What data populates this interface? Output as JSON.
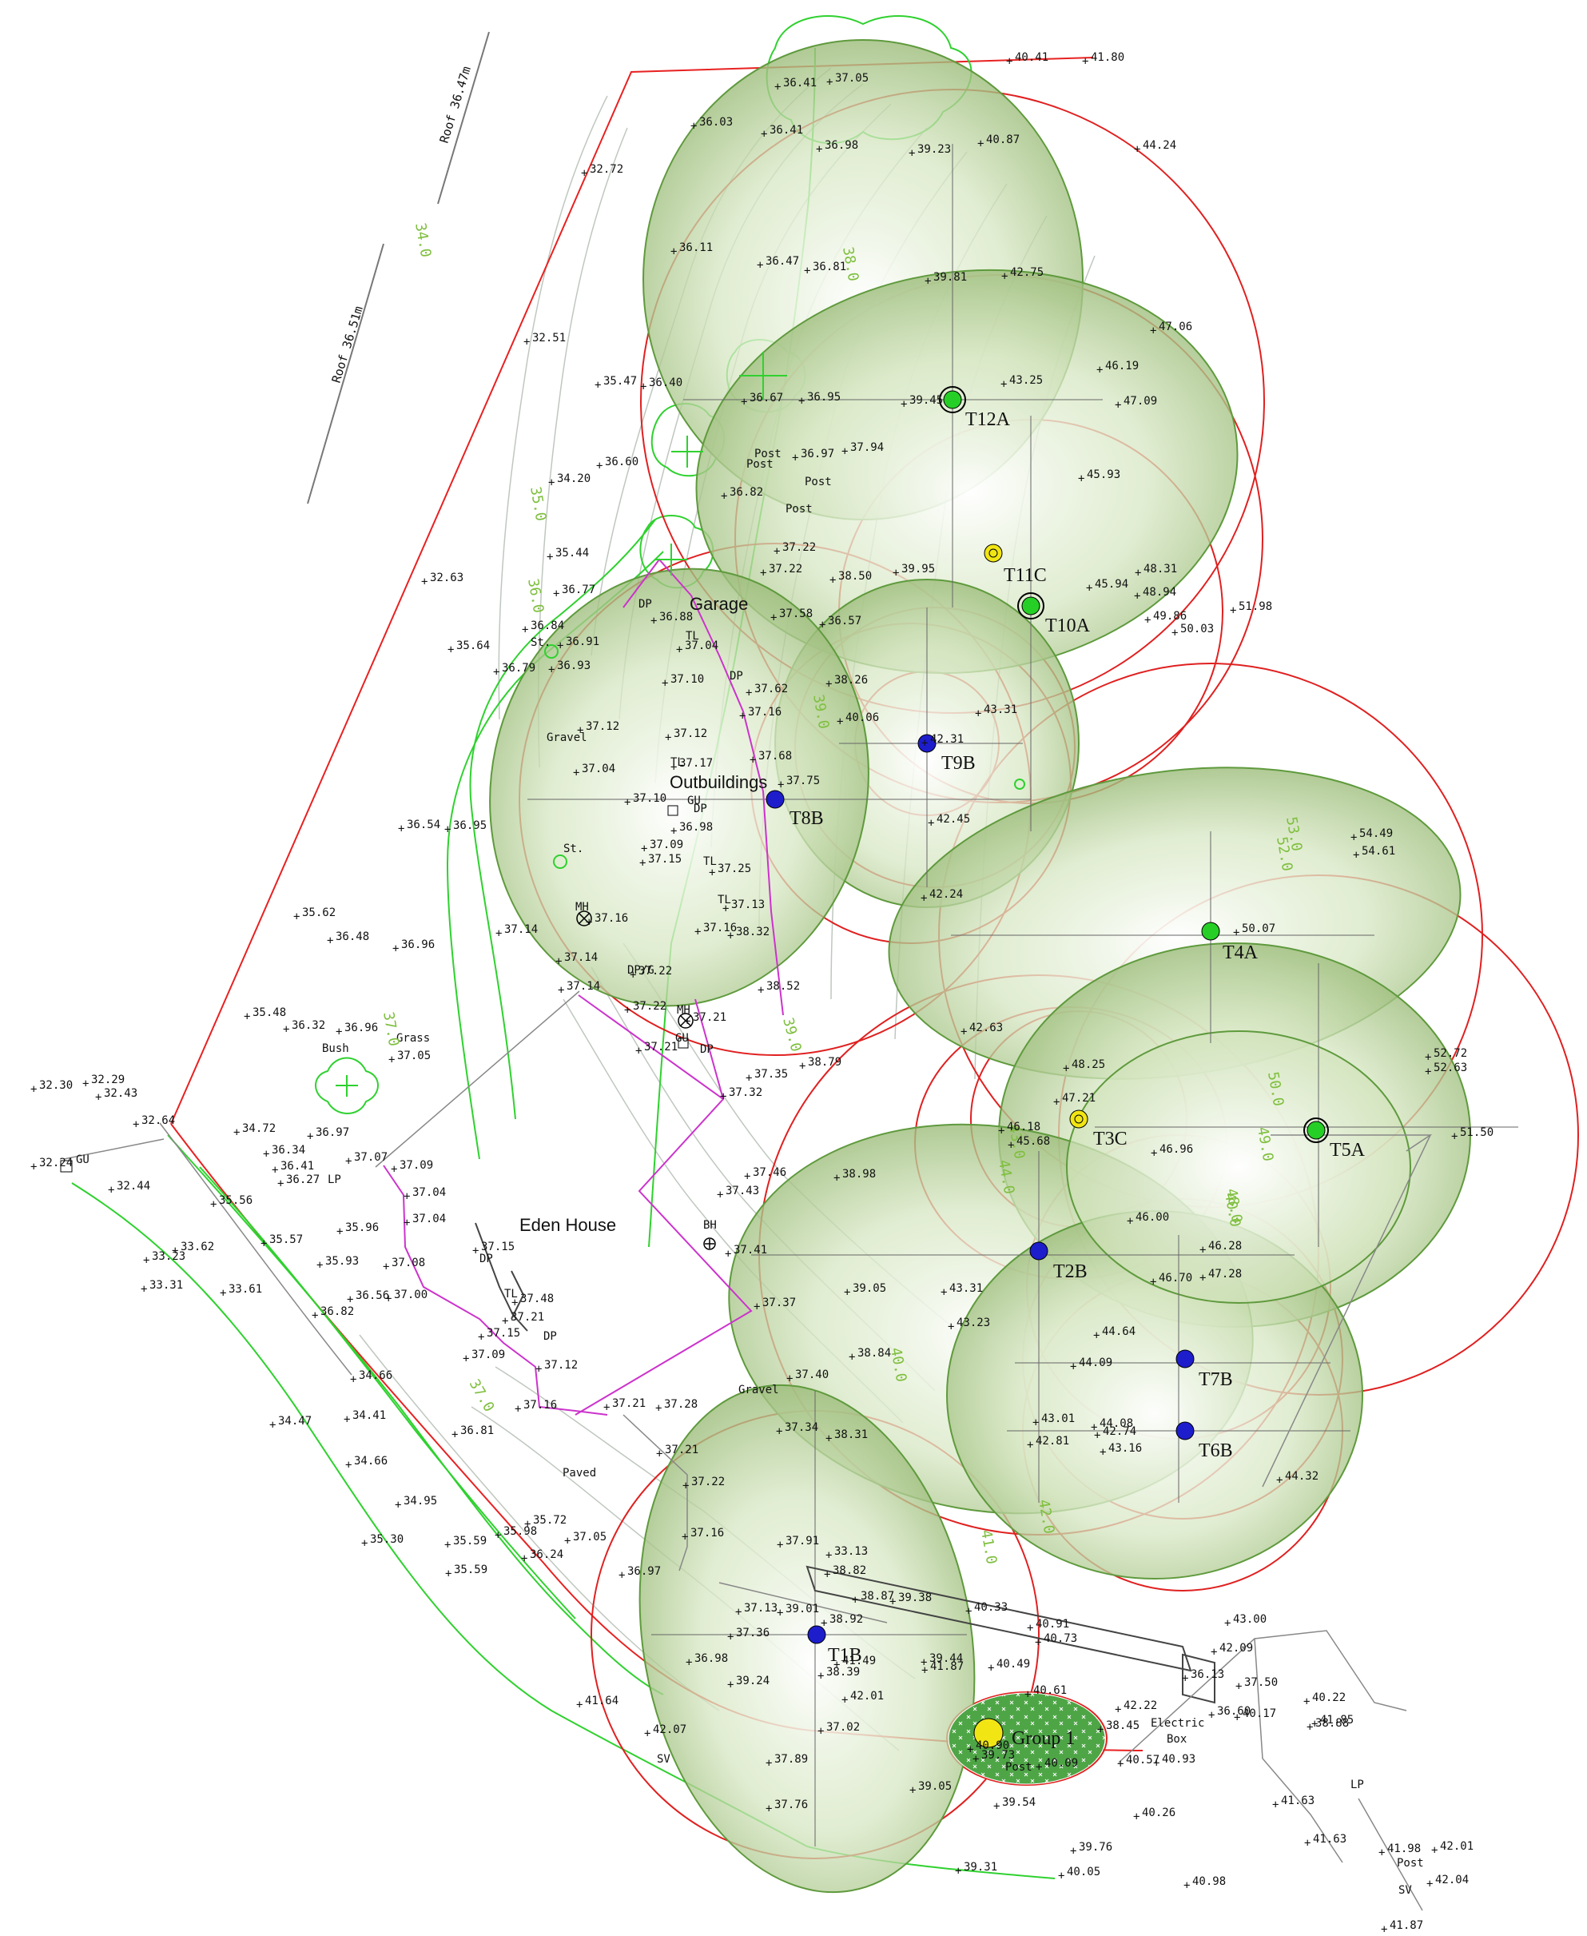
{
  "colors": {
    "boundary": "#e82121",
    "tree_canopy": "#a7ca76",
    "rpa_circle": "#e02020",
    "hedge": "#2fd12f",
    "utility": "#cc33cc",
    "contour": "#bfc7bf",
    "grid": "#666666",
    "marker_green": "#26cf26",
    "marker_blue": "#1d1dcc",
    "marker_yellow": "#f1e514"
  },
  "labels": {
    "buildings": {
      "eden_house": "Eden House",
      "garage": "Garage",
      "outbuildings": "Outbuildings"
    },
    "surfaces": {
      "gravel_top": "Gravel",
      "grass": "Grass",
      "gravel_bottom": "Gravel",
      "paved": "Paved",
      "bush": "Bush"
    },
    "roof": {
      "top": "Roof 36.47m",
      "middle": "Roof 36.51m"
    },
    "features": {
      "electric_box_1": "Electric",
      "electric_box_2": "Box"
    }
  },
  "trees": [
    {
      "id": "T12A",
      "label": "T12A",
      "marker": "green-ring-icon"
    },
    {
      "id": "T11C",
      "label": "T11C",
      "marker": "yellow-ring-icon"
    },
    {
      "id": "T10A",
      "label": "T10A",
      "marker": "green-ring-icon"
    },
    {
      "id": "T9B",
      "label": "T9B",
      "marker": "blue-dot-icon"
    },
    {
      "id": "T8B",
      "label": "T8B",
      "marker": "blue-dot-icon"
    },
    {
      "id": "T4A",
      "label": "T4A",
      "marker": "green-dot-icon"
    },
    {
      "id": "T3C",
      "label": "T3C",
      "marker": "yellow-ring-icon"
    },
    {
      "id": "T5A",
      "label": "T5A",
      "marker": "green-ring-icon"
    },
    {
      "id": "T2B",
      "label": "T2B",
      "marker": "blue-dot-icon"
    },
    {
      "id": "T7B",
      "label": "T7B",
      "marker": "blue-dot-icon"
    },
    {
      "id": "T6B",
      "label": "T6B",
      "marker": "blue-dot-icon"
    },
    {
      "id": "T1B",
      "label": "T1B",
      "marker": "blue-dot-icon"
    },
    {
      "id": "G1",
      "label": "Group 1",
      "marker": "yellow-dot-icon"
    }
  ],
  "spot_levels": [
    "36.41",
    "37.05",
    "40.41",
    "41.80",
    "36.03",
    "36.41",
    "36.98",
    "39.23",
    "40.87",
    "44.24",
    "32.72",
    "36.11",
    "36.47",
    "36.81",
    "39.81",
    "42.75",
    "47.06",
    "32.51",
    "35.47",
    "36.40",
    "36.67",
    "36.95",
    "39.45",
    "43.25",
    "46.19",
    "47.09",
    "36.60",
    "36.97",
    "37.94",
    "45.93",
    "34.20",
    "36.82",
    "37.22",
    "39.95",
    "45.94",
    "48.31",
    "48.94",
    "49.86",
    "50.03",
    "51.98",
    "32.63",
    "35.44",
    "36.77",
    "37.22",
    "38.50",
    "36.88",
    "37.58",
    "36.57",
    "36.84",
    "36.91",
    "37.04",
    "35.64",
    "36.79",
    "36.93",
    "37.10",
    "37.62",
    "38.26",
    "43.31",
    "37.12",
    "37.12",
    "37.17",
    "37.16",
    "40.06",
    "37.04",
    "37.68",
    "42.31",
    "37.75",
    "37.10",
    "36.98",
    "42.45",
    "36.54",
    "36.95",
    "37.09",
    "37.15",
    "37.25",
    "54.49",
    "54.61",
    "35.62",
    "37.13",
    "42.24",
    "36.48",
    "36.96",
    "37.14",
    "37.16",
    "37.16",
    "38.32",
    "50.07",
    "37.14",
    "37.22",
    "35.48",
    "37.14",
    "38.52",
    "36.32",
    "36.96",
    "37.22",
    "37.21",
    "42.63",
    "48.25",
    "52.72",
    "52.63",
    "37.05",
    "37.21",
    "37.32",
    "37.35",
    "38.79",
    "47.21",
    "32.30",
    "32.29",
    "32.43",
    "32.64",
    "34.72",
    "36.97",
    "46.18",
    "45.68",
    "46.96",
    "51.50",
    "36.34",
    "36.41",
    "37.07",
    "37.09",
    "37.46",
    "38.98",
    "32.24",
    "32.44",
    "36.27",
    "35.56",
    "37.04",
    "37.43",
    "46.00",
    "35.96",
    "37.04",
    "33.62",
    "35.57",
    "33.23",
    "37.15",
    "37.41",
    "46.28",
    "37.08",
    "35.93",
    "33.31",
    "33.61",
    "36.56",
    "37.00",
    "36.82",
    "37.48",
    "37.37",
    "39.05",
    "43.31",
    "46.70",
    "47.28",
    "37.21",
    "37.15",
    "37.09",
    "43.23",
    "44.64",
    "37.12",
    "34.66",
    "37.40",
    "38.84",
    "44.09",
    "37.16",
    "37.21",
    "37.28",
    "34.47",
    "34.41",
    "36.81",
    "43.01",
    "44.08",
    "42.81",
    "42.74",
    "43.16",
    "37.34",
    "38.31",
    "37.21",
    "34.66",
    "44.32",
    "34.95",
    "37.22",
    "35.72",
    "35.30",
    "35.59",
    "35.98",
    "37.05",
    "37.16",
    "37.91",
    "33.13",
    "38.82",
    "36.24",
    "36.97",
    "35.59",
    "38.87",
    "39.38",
    "40.33",
    "37.13",
    "39.01",
    "43.00",
    "37.36",
    "38.92",
    "40.91",
    "40.73",
    "38.39",
    "42.09",
    "39.44",
    "40.49",
    "36.98",
    "39.24",
    "41.49",
    "41.87",
    "36.13",
    "37.50",
    "40.61",
    "42.01",
    "42.22",
    "36.60",
    "40.17",
    "38.88",
    "40.22",
    "41.85",
    "41.64",
    "42.07",
    "37.02",
    "38.45",
    "40.90",
    "37.89",
    "39.73",
    "40.09",
    "40.57",
    "40.93",
    "39.05",
    "39.54",
    "37.76",
    "40.26",
    "41.63",
    "41.63",
    "41.98",
    "42.01",
    "39.76",
    "39.31",
    "40.05",
    "40.98",
    "42.04",
    "41.87"
  ],
  "utility_codes": [
    "DP",
    "TL",
    "DP",
    "TL",
    "GU",
    "DP",
    "TL",
    "TL",
    "MH",
    "DP/G",
    "MH",
    "GU",
    "DP",
    "BH",
    "DP",
    "TL",
    "DP",
    "Post",
    "Post",
    "Post",
    "Post",
    "Post",
    "GU",
    "LP",
    "LP",
    "Post",
    "SV",
    "SV",
    "St.",
    "St."
  ],
  "contour_values": [
    "34.0",
    "35.0",
    "36.0",
    "37.0",
    "37.0",
    "38.0",
    "39.0",
    "39.0",
    "41.0",
    "40.0",
    "42.0",
    "44.0",
    "43.0",
    "48.0",
    "49.0",
    "50.0",
    "52.0",
    "53.0",
    "40.0"
  ]
}
